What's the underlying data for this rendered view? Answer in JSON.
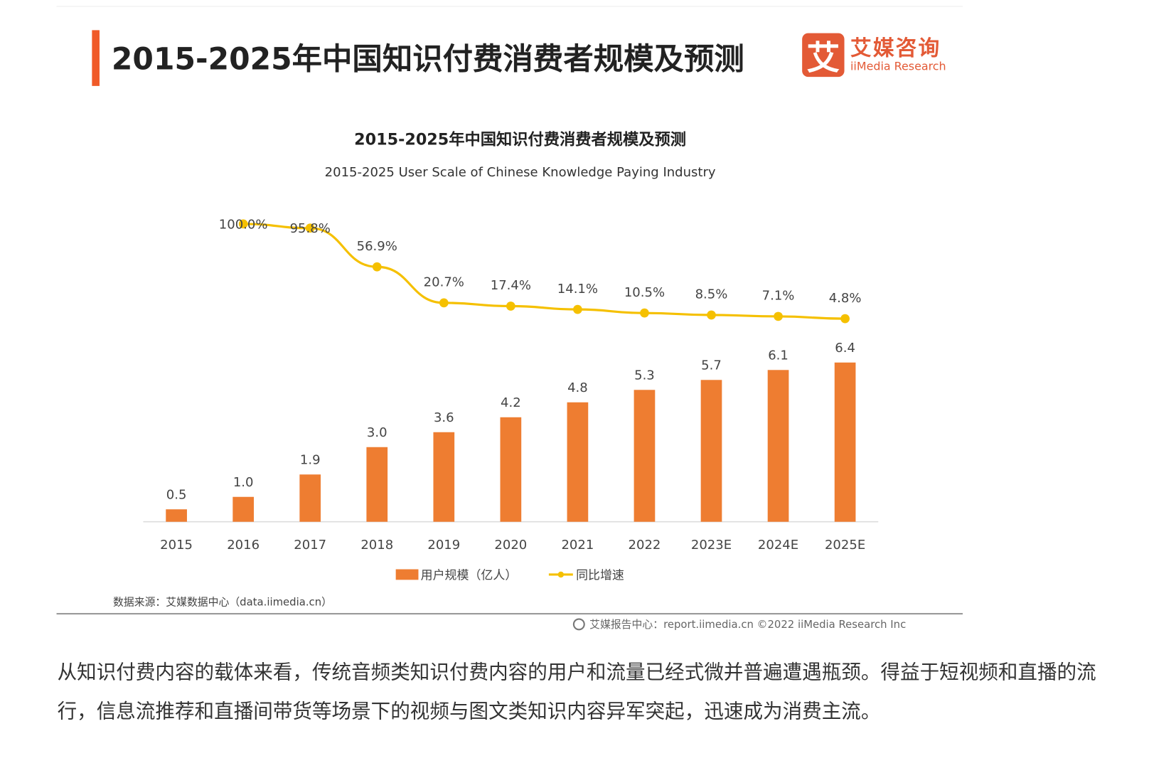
{
  "header": {
    "title": "2015-2025年中国知识付费消费者规模及预测"
  },
  "logo": {
    "mark": "艾",
    "cn": "艾媒咨询",
    "en": "iiMedia Research"
  },
  "chart_data": {
    "type": "bar+line",
    "title": "2015-2025年中国知识付费消费者规模及预测",
    "subtitle": "2015-2025 User Scale of Chinese Knowledge Paying Industry",
    "categories": [
      "2015",
      "2016",
      "2017",
      "2018",
      "2019",
      "2020",
      "2021",
      "2022",
      "2023E",
      "2024E",
      "2025E"
    ],
    "series": [
      {
        "name": "用户规模（亿人）",
        "type": "bar",
        "color": "#ee7d31",
        "values": [
          0.5,
          1.0,
          1.9,
          3.0,
          3.6,
          4.2,
          4.8,
          5.3,
          5.7,
          6.1,
          6.4
        ],
        "labels": [
          "0.5",
          "1.0",
          "1.9",
          "3.0",
          "3.6",
          "4.2",
          "4.8",
          "5.3",
          "5.7",
          "6.1",
          "6.4"
        ]
      },
      {
        "name": "同比增速",
        "type": "line",
        "color": "#f5c000",
        "values": [
          null,
          100.0,
          95.8,
          56.9,
          20.7,
          17.4,
          14.1,
          10.5,
          8.5,
          7.1,
          4.8
        ],
        "labels": [
          null,
          "100.0%",
          "95.8%",
          "56.9%",
          "20.7%",
          "17.4%",
          "14.1%",
          "10.5%",
          "8.5%",
          "7.1%",
          "4.8%"
        ]
      }
    ],
    "legend": "bottom",
    "grid": false,
    "source": "数据来源：艾媒数据中心（data.iimedia.cn）"
  },
  "footer": {
    "text": "艾媒报告中心：report.iimedia.cn   ©2022  iiMedia Research  Inc"
  },
  "paragraph": "从知识付费内容的载体来看，传统音频类知识付费内容的用户和流量已经式微并普遍遭遇瓶颈。得益于短视频和直播的流行，信息流推荐和直播间带货等场景下的视频与图文类知识内容异军突起，迅速成为消费主流。"
}
